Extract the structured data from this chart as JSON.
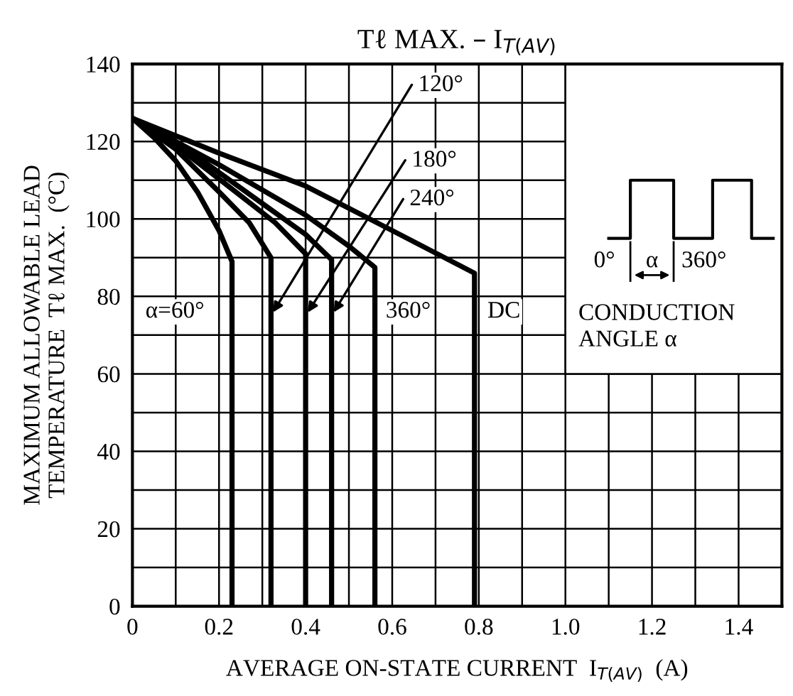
{
  "chart_data": {
    "type": "line",
    "title": "Tℓ MAX. – I$_{T(AV)}$",
    "xlabel": "AVERAGE ON-STATE CURRENT  I$_{T(AV)}$  (A)",
    "ylabel": "MAXIMUM ALLOWABLE LEAD\nTEMPERATURE  Tℓ MAX.  (°C)",
    "series": [
      {
        "name": "α=60°",
        "color": "#000000",
        "x": [
          0,
          0.05,
          0.1,
          0.15,
          0.2,
          0.23,
          0.23
        ],
        "values": [
          126,
          121,
          115,
          107,
          97,
          89,
          0
        ]
      },
      {
        "name": "120°",
        "color": "#000000",
        "x": [
          0,
          0.1,
          0.2,
          0.27,
          0.32,
          0.32
        ],
        "values": [
          126,
          118,
          107,
          99,
          90,
          0
        ]
      },
      {
        "name": "180°",
        "color": "#000000",
        "x": [
          0,
          0.1,
          0.25,
          0.33,
          0.4,
          0.4
        ],
        "values": [
          126,
          119,
          106,
          99,
          91,
          0
        ]
      },
      {
        "name": "240°",
        "color": "#000000",
        "x": [
          0,
          0.15,
          0.3,
          0.4,
          0.46,
          0.46
        ],
        "values": [
          126,
          116,
          104,
          96,
          89.5,
          0
        ]
      },
      {
        "name": "360°",
        "color": "#000000",
        "x": [
          0,
          0.2,
          0.4,
          0.5,
          0.56,
          0.56
        ],
        "values": [
          126,
          114,
          101,
          93,
          87.5,
          0
        ]
      },
      {
        "name": "DC",
        "color": "#000000",
        "x": [
          0,
          0.2,
          0.4,
          0.6,
          0.79,
          0.79
        ],
        "values": [
          126,
          117,
          108.5,
          97,
          86,
          0
        ]
      }
    ],
    "annotations": [
      "0°",
      "α",
      "360°",
      "CONDUCTION\nANGLE α"
    ],
    "xlim": [
      0,
      1.5
    ],
    "xticks": [
      0,
      {
        "value": 0.1,
        "label": null
      },
      0.2,
      {
        "value": 0.3,
        "label": null
      },
      0.4,
      {
        "value": 0.5,
        "label": null
      },
      0.6,
      {
        "value": 0.7,
        "label": null
      },
      0.8,
      {
        "value": 0.9,
        "label": null
      },
      {
        "value": 1.0,
        "label": "1.0"
      },
      {
        "value": 1.1,
        "label": null
      },
      1.2,
      {
        "value": 1.3,
        "label": null
      },
      1.4
    ],
    "ylim": [
      0,
      140
    ],
    "yticks": [
      0,
      {
        "value": 10,
        "label": null
      },
      20,
      {
        "value": 30,
        "label": null
      },
      40,
      {
        "value": 50,
        "label": null
      },
      60,
      {
        "value": 70,
        "label": null
      },
      80,
      {
        "value": 90,
        "label": null
      },
      100,
      {
        "value": 110,
        "label": null
      },
      120,
      {
        "value": 130,
        "label": null
      },
      140
    ],
    "grid": true,
    "line_style": "solid",
    "marker": "none"
  }
}
